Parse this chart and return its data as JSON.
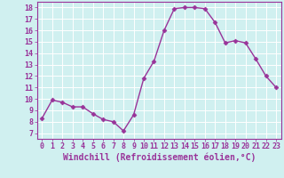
{
  "x": [
    0,
    1,
    2,
    3,
    4,
    5,
    6,
    7,
    8,
    9,
    10,
    11,
    12,
    13,
    14,
    15,
    16,
    17,
    18,
    19,
    20,
    21,
    22,
    23
  ],
  "y": [
    8.3,
    9.9,
    9.7,
    9.3,
    9.3,
    8.7,
    8.2,
    8.0,
    7.2,
    8.6,
    11.8,
    13.3,
    16.0,
    17.9,
    18.0,
    18.0,
    17.9,
    16.7,
    14.9,
    15.1,
    14.9,
    13.5,
    12.0,
    11.0
  ],
  "line_color": "#993399",
  "marker": "D",
  "markersize": 2.5,
  "linewidth": 1.0,
  "xlabel": "Windchill (Refroidissement éolien,°C)",
  "xlim": [
    -0.5,
    23.5
  ],
  "ylim": [
    6.5,
    18.5
  ],
  "yticks": [
    7,
    8,
    9,
    10,
    11,
    12,
    13,
    14,
    15,
    16,
    17,
    18
  ],
  "xticks": [
    0,
    1,
    2,
    3,
    4,
    5,
    6,
    7,
    8,
    9,
    10,
    11,
    12,
    13,
    14,
    15,
    16,
    17,
    18,
    19,
    20,
    21,
    22,
    23
  ],
  "bg_color": "#d0f0f0",
  "grid_color": "#ffffff",
  "tick_label_fontsize": 6.0,
  "xlabel_fontsize": 7.0,
  "tick_color": "#993399",
  "axis_color": "#993399"
}
